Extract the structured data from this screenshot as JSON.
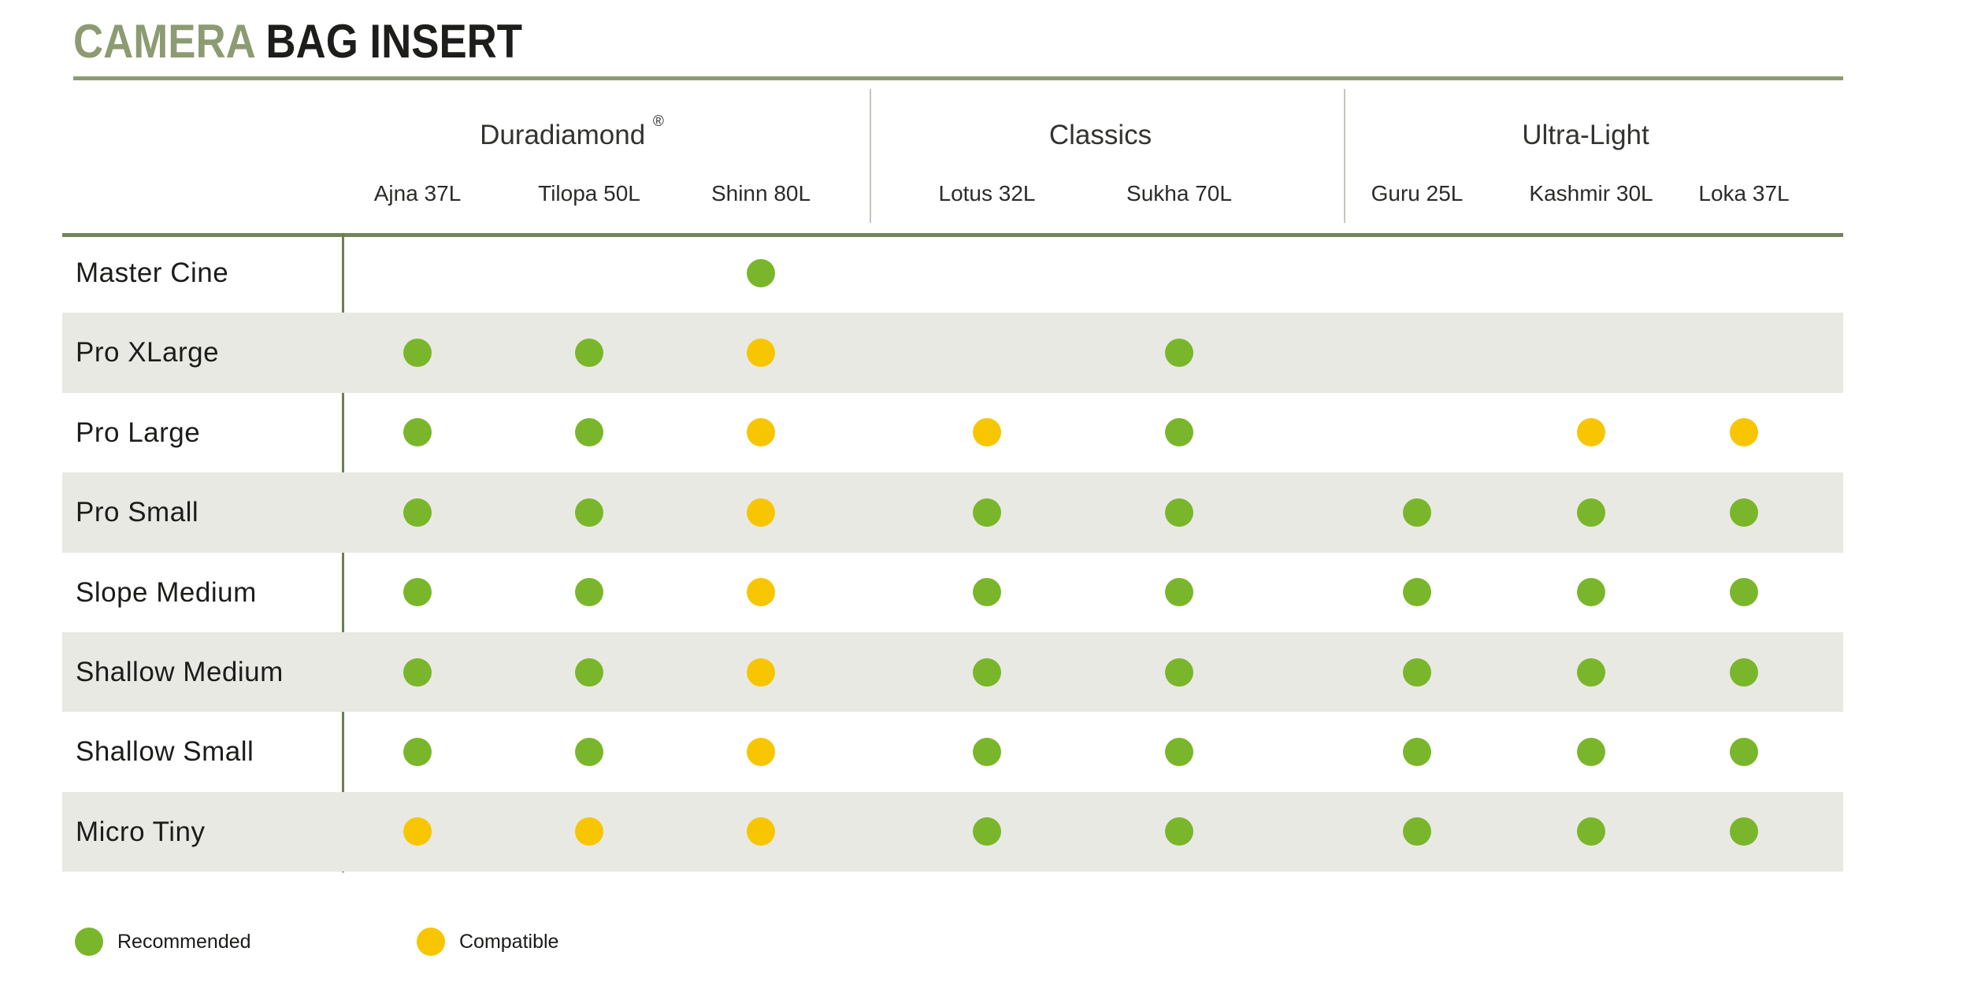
{
  "title": {
    "accent": "CAMERA",
    "rest": " BAG INSERT"
  },
  "legend": [
    {
      "status": "recommended",
      "label": "Recommended"
    },
    {
      "status": "compatible",
      "label": "Compatible"
    }
  ],
  "colors": {
    "recommended": "#7ab62b",
    "compatible": "#f7c600",
    "accent_olive": "#8d9b72",
    "rule_olive": "#76835a",
    "row_stripe": "#e9e9e3"
  },
  "chart_data": {
    "type": "table",
    "title": "CAMERA BAG INSERT",
    "legend": {
      "recommended": "Recommended",
      "compatible": "Compatible"
    },
    "column_groups": [
      {
        "label": "Duradiamond",
        "registered": "®",
        "span": 3
      },
      {
        "label": "Classics",
        "registered": "",
        "span": 2
      },
      {
        "label": "Ultra-Light",
        "registered": "",
        "span": 3
      }
    ],
    "columns": [
      "Ajna 37L",
      "Tilopa 50L",
      "Shinn 80L",
      "Lotus 32L",
      "Sukha 70L",
      "Guru 25L",
      "Kashmir 30L",
      "Loka 37L"
    ],
    "rows": [
      "Master Cine",
      "Pro XLarge",
      "Pro Large",
      "Pro Small",
      "Slope Medium",
      "Shallow Medium",
      "Shallow Small",
      "Micro Tiny"
    ],
    "matrix": [
      [
        null,
        null,
        "recommended",
        null,
        null,
        null,
        null,
        null
      ],
      [
        "recommended",
        "recommended",
        "compatible",
        null,
        "recommended",
        null,
        null,
        null
      ],
      [
        "recommended",
        "recommended",
        "compatible",
        "compatible",
        "recommended",
        null,
        "compatible",
        "compatible"
      ],
      [
        "recommended",
        "recommended",
        "compatible",
        "recommended",
        "recommended",
        "recommended",
        "recommended",
        "recommended"
      ],
      [
        "recommended",
        "recommended",
        "compatible",
        "recommended",
        "recommended",
        "recommended",
        "recommended",
        "recommended"
      ],
      [
        "recommended",
        "recommended",
        "compatible",
        "recommended",
        "recommended",
        "recommended",
        "recommended",
        "recommended"
      ],
      [
        "recommended",
        "recommended",
        "compatible",
        "recommended",
        "recommended",
        "recommended",
        "recommended",
        "recommended"
      ],
      [
        "compatible",
        "compatible",
        "compatible",
        "recommended",
        "recommended",
        "recommended",
        "recommended",
        "recommended"
      ]
    ]
  }
}
